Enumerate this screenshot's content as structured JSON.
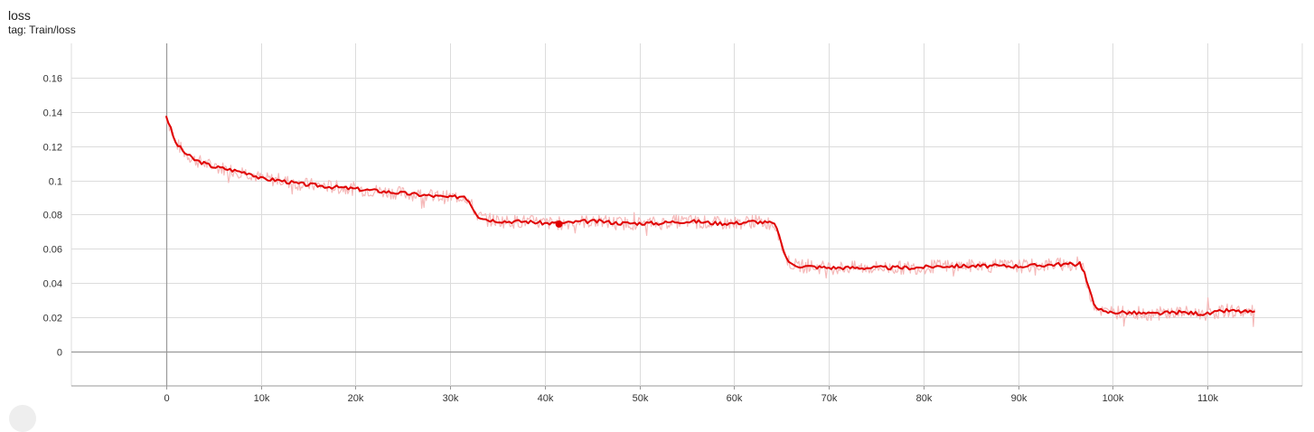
{
  "header": {
    "title": "loss",
    "subtitle": "tag: Train/loss"
  },
  "colors": {
    "smoothed": "#e00000",
    "raw": "#f5b9b9",
    "grid": "#dcdcdc",
    "axis": "#999999",
    "marker": "#e00000"
  },
  "chart_data": {
    "type": "line",
    "title": "loss",
    "subtitle": "tag: Train/loss",
    "xlabel": "",
    "ylabel": "",
    "xlim": [
      -10000,
      120000
    ],
    "ylim": [
      -0.02,
      0.18
    ],
    "x_ticks": [
      0,
      10000,
      20000,
      30000,
      40000,
      50000,
      60000,
      70000,
      80000,
      90000,
      100000,
      110000
    ],
    "x_tick_labels": [
      "0",
      "10k",
      "20k",
      "30k",
      "40k",
      "50k",
      "60k",
      "70k",
      "80k",
      "90k",
      "100k",
      "110k"
    ],
    "y_ticks": [
      0,
      0.02,
      0.04,
      0.06,
      0.08,
      0.1,
      0.12,
      0.14,
      0.16
    ],
    "y_tick_labels": [
      "0",
      "0.02",
      "0.04",
      "0.06",
      "0.08",
      "0.1",
      "0.12",
      "0.14",
      "0.16"
    ],
    "grid": true,
    "legend": "none",
    "series": [
      {
        "name": "",
        "role": "smoothed",
        "points": [
          [
            0,
            0.138
          ],
          [
            500,
            0.13
          ],
          [
            1000,
            0.122
          ],
          [
            2000,
            0.116
          ],
          [
            3000,
            0.112
          ],
          [
            4000,
            0.11
          ],
          [
            5000,
            0.108
          ],
          [
            6000,
            0.107
          ],
          [
            7000,
            0.106
          ],
          [
            8000,
            0.105
          ],
          [
            9000,
            0.104
          ],
          [
            10000,
            0.101
          ],
          [
            12000,
            0.1
          ],
          [
            14000,
            0.098
          ],
          [
            16000,
            0.097
          ],
          [
            18000,
            0.096
          ],
          [
            20000,
            0.095
          ],
          [
            22000,
            0.094
          ],
          [
            24000,
            0.093
          ],
          [
            26000,
            0.092
          ],
          [
            28000,
            0.091
          ],
          [
            30000,
            0.09
          ],
          [
            31500,
            0.091
          ],
          [
            32000,
            0.088
          ],
          [
            32500,
            0.083
          ],
          [
            33000,
            0.079
          ],
          [
            34000,
            0.077
          ],
          [
            36000,
            0.076
          ],
          [
            38000,
            0.076
          ],
          [
            40000,
            0.075
          ],
          [
            42000,
            0.075
          ],
          [
            44000,
            0.076
          ],
          [
            46000,
            0.076
          ],
          [
            48000,
            0.075
          ],
          [
            50000,
            0.075
          ],
          [
            52000,
            0.075
          ],
          [
            54000,
            0.076
          ],
          [
            56000,
            0.076
          ],
          [
            58000,
            0.075
          ],
          [
            60000,
            0.075
          ],
          [
            62000,
            0.076
          ],
          [
            64000,
            0.075
          ],
          [
            64500,
            0.073
          ],
          [
            65000,
            0.062
          ],
          [
            65500,
            0.055
          ],
          [
            66000,
            0.051
          ],
          [
            67000,
            0.05
          ],
          [
            70000,
            0.049
          ],
          [
            73000,
            0.049
          ],
          [
            76000,
            0.049
          ],
          [
            79000,
            0.049
          ],
          [
            82000,
            0.05
          ],
          [
            85000,
            0.05
          ],
          [
            88000,
            0.05
          ],
          [
            91000,
            0.05
          ],
          [
            94000,
            0.051
          ],
          [
            96000,
            0.051
          ],
          [
            96500,
            0.052
          ],
          [
            97000,
            0.046
          ],
          [
            97500,
            0.036
          ],
          [
            98000,
            0.028
          ],
          [
            99000,
            0.023
          ],
          [
            101000,
            0.023
          ],
          [
            104000,
            0.022
          ],
          [
            107000,
            0.023
          ],
          [
            110000,
            0.022
          ],
          [
            112000,
            0.024
          ],
          [
            115000,
            0.023
          ]
        ]
      }
    ],
    "highlight_point": [
      41500,
      0.0745
    ]
  }
}
